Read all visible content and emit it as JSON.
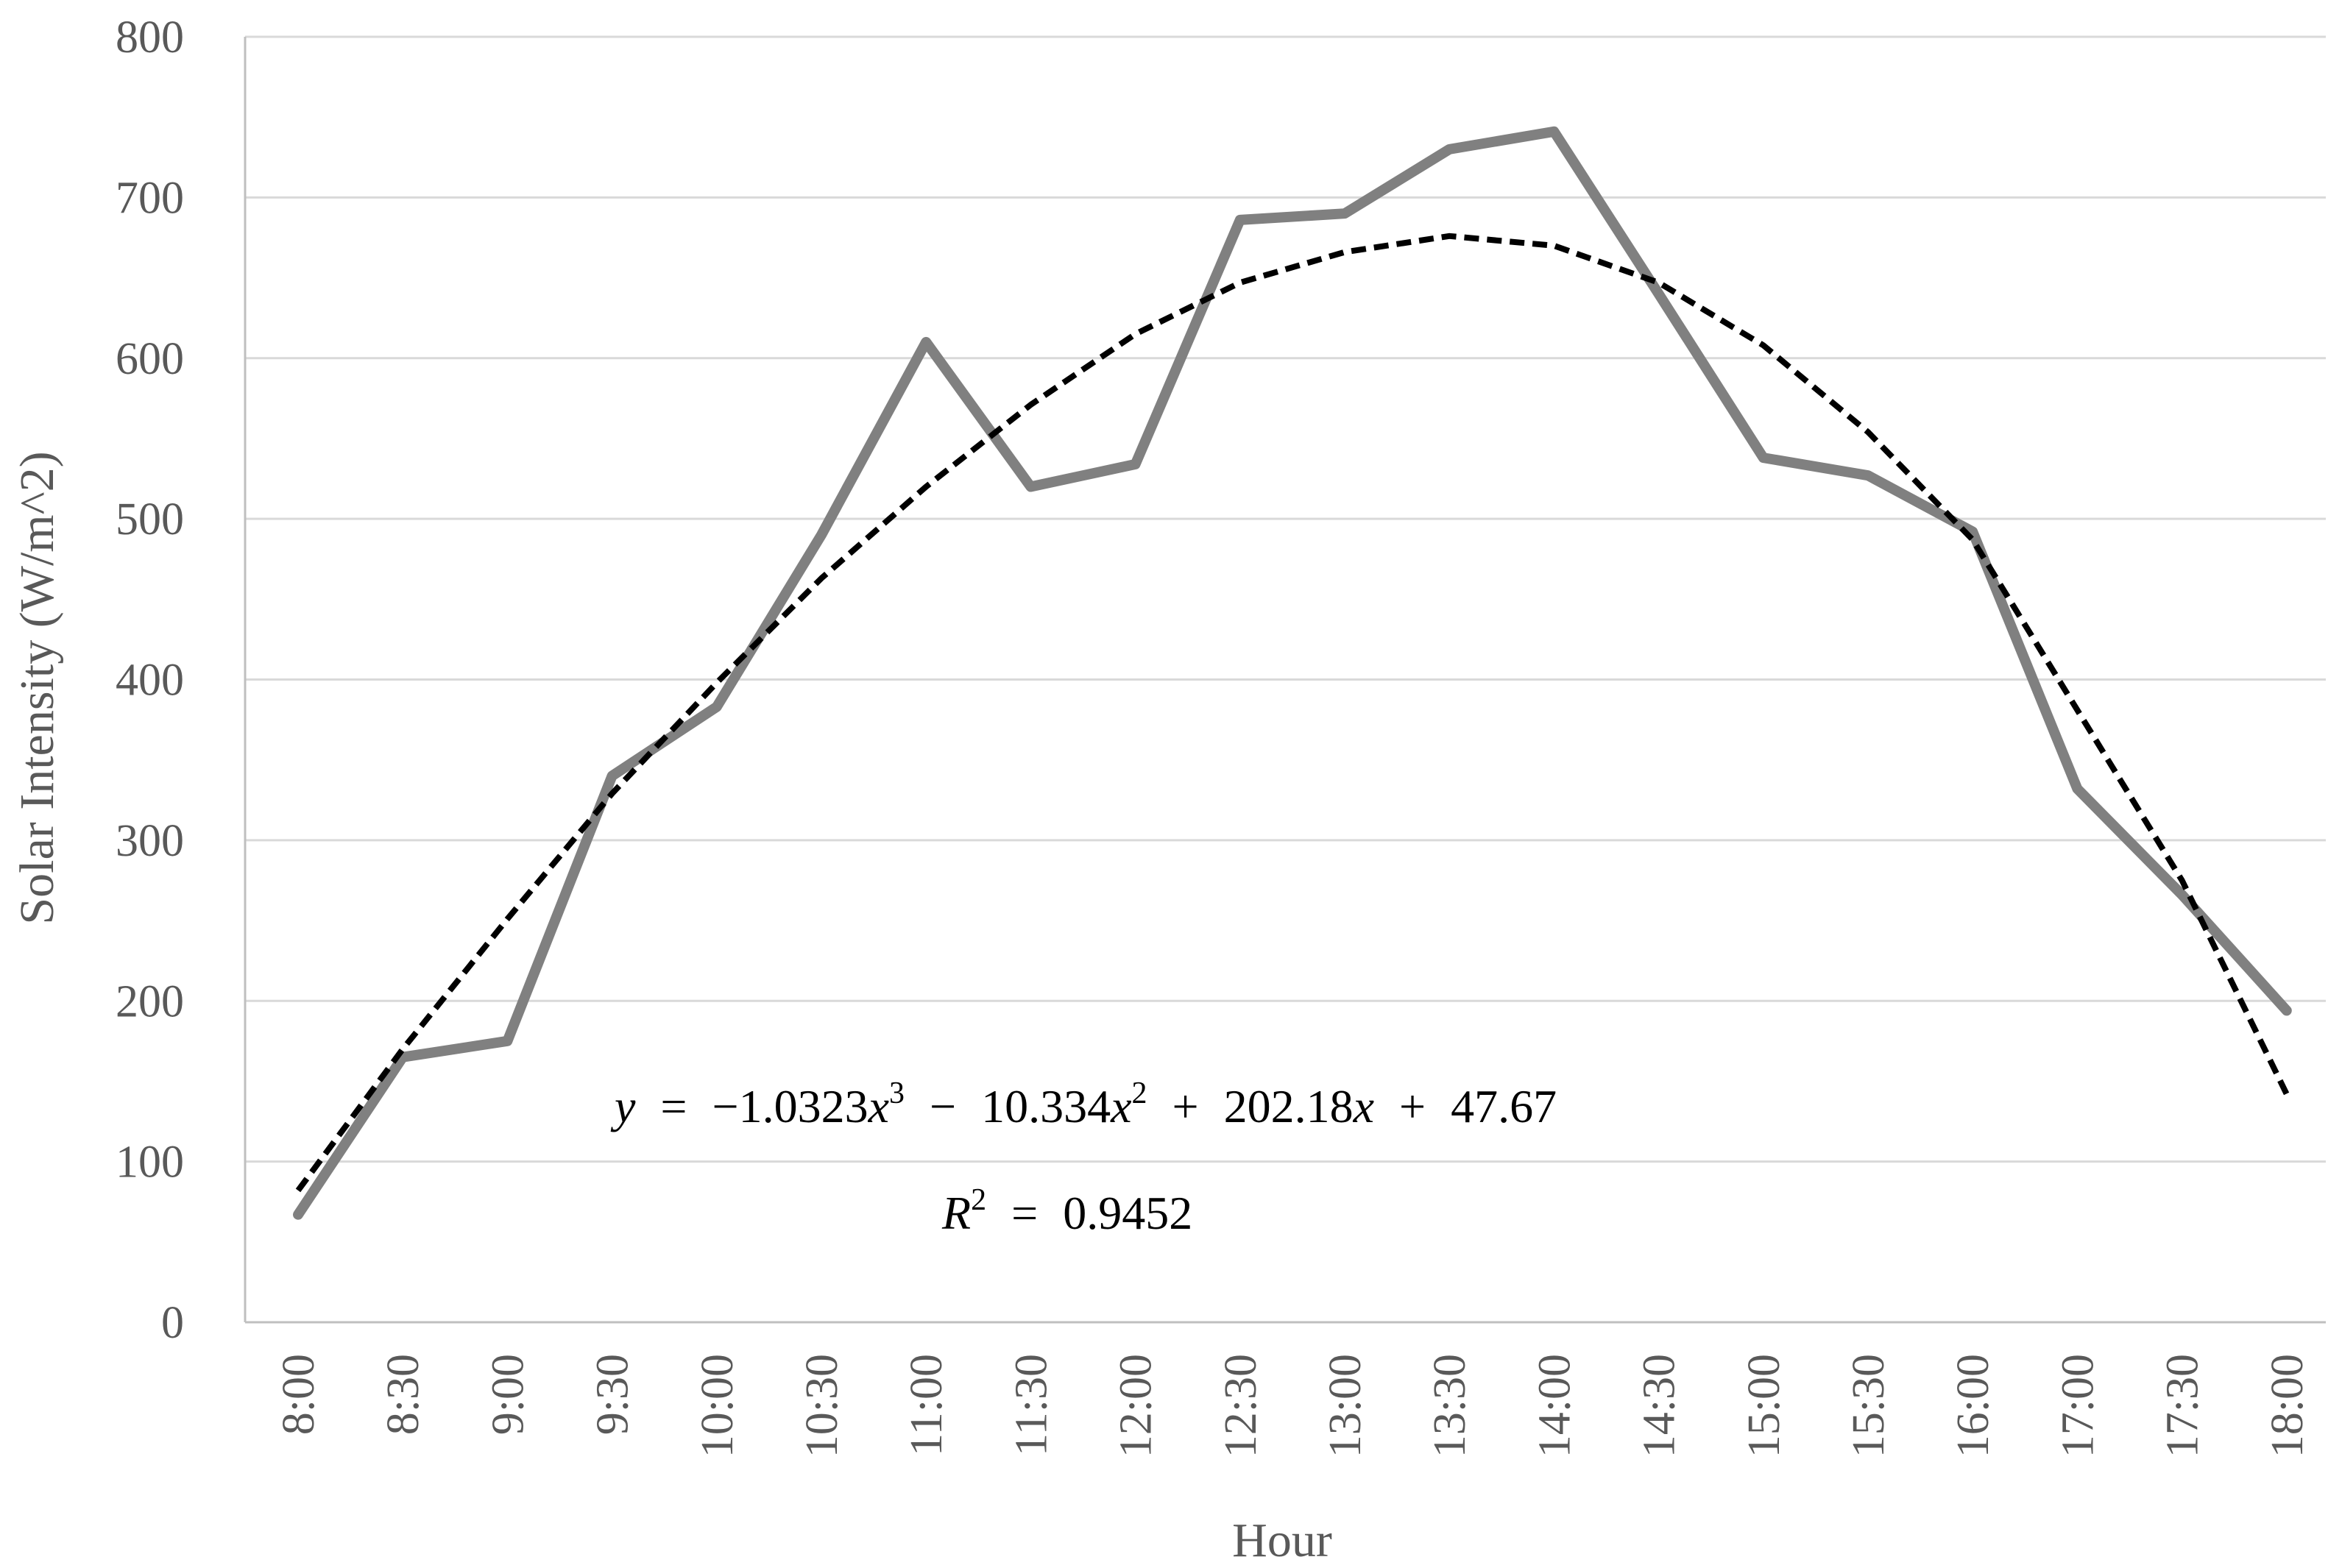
{
  "chart_data": {
    "type": "line",
    "title": "",
    "xlabel": "Hour",
    "ylabel": "Solar Intensity (W/m^2)",
    "ylim": [
      0,
      800
    ],
    "yticks": [
      "0",
      "100",
      "200",
      "300",
      "400",
      "500",
      "600",
      "700",
      "800"
    ],
    "categories": [
      "8:00",
      "8:30",
      "9:00",
      "9:30",
      "10:00",
      "10:30",
      "11:00",
      "11:30",
      "12:00",
      "12:30",
      "13:00",
      "13:30",
      "14:00",
      "14:30",
      "15:00",
      "15:30",
      "16:00",
      "17:00",
      "17:30",
      "18:00"
    ],
    "series": [
      {
        "values": [
          67,
          165,
          175,
          340,
          383,
          490,
          610,
          520,
          534,
          686,
          690,
          730,
          741,
          640,
          538,
          527,
          492,
          332,
          266,
          194
        ],
        "color": "#808080",
        "style": "solid"
      },
      {
        "values": [
          82,
          170,
          251,
          329,
          398,
          463,
          520,
          571,
          615,
          647,
          666,
          676,
          670,
          647,
          608,
          554,
          487,
          381,
          275,
          142
        ],
        "color": "#000000",
        "style": "dashed"
      }
    ],
    "trendline": {
      "type": "polynomial",
      "order": 3,
      "equation": {
        "y_label": "y",
        "equals": "=",
        "minus": "−",
        "plus": "+",
        "c3": "1.0323",
        "c2": "10.334",
        "c1": "202.18",
        "c0": "47.67",
        "var": "x",
        "exp3": "3",
        "exp2": "2"
      },
      "r2": {
        "label": "R",
        "exp": "2",
        "equals": "=",
        "value": "0.9452"
      }
    },
    "grid": true,
    "legend": "none",
    "colors": {
      "series": "#808080",
      "trend": "#000000",
      "grid": "#d9d9d9",
      "axis": "#bfbfbf",
      "text": "#595959"
    }
  }
}
